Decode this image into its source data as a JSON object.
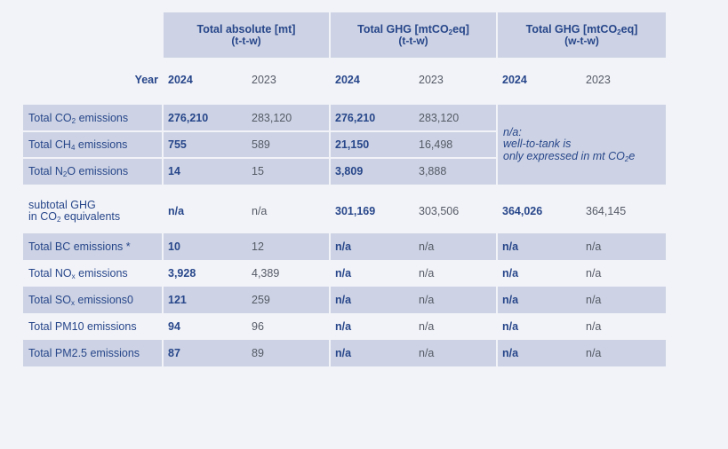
{
  "header": {
    "col1_title": "Total absolute [mt]",
    "col1_sub": "(t-t-w)",
    "col2_title_a": "Total GHG [mtCO",
    "col2_title_sub": "2",
    "col2_title_b": "eq]",
    "col2_sub": "(t-t-w)",
    "col3_title_a": "Total GHG [mtCO",
    "col3_title_sub": "2",
    "col3_title_b": "eq]",
    "col3_sub": "(w-t-w)"
  },
  "year_row": {
    "label": "Year",
    "c1_cur": "2024",
    "c1_prev": "2023",
    "c2_cur": "2024",
    "c2_prev": "2023",
    "c3_cur": "2024",
    "c3_prev": "2023"
  },
  "rows": [
    {
      "label_a": "Total CO",
      "label_sub": "2",
      "label_b": " emissions",
      "c1": "276,210",
      "c1p": "283,120",
      "c2": "276,210",
      "c2p": "283,120",
      "c3": "",
      "c3p": ""
    },
    {
      "label_a": "Total CH",
      "label_sub": "4",
      "label_b": " emissions",
      "c1": "755",
      "c1p": "589",
      "c2": "21,150",
      "c2p": "16,498",
      "c3": "",
      "c3p": ""
    },
    {
      "label_a": "Total N",
      "label_sub": "2",
      "label_b": "O emissions",
      "c1": "14",
      "c1p": "15",
      "c2": "3,809",
      "c2p": "3,888",
      "c3": "",
      "c3p": ""
    },
    {
      "label_a": "subtotal GHG",
      "label_line2_a": "in CO",
      "label_sub": "2",
      "label_b": " equivalents",
      "c1": "n/a",
      "c1p": "n/a",
      "c2": "301,169",
      "c2p": "303,506",
      "c3": "364,026",
      "c3p": "364,145"
    },
    {
      "label_a": "Total BC emissions *",
      "label_sub": "",
      "label_b": "",
      "c1": "10",
      "c1p": "12",
      "c2": "n/a",
      "c2p": "n/a",
      "c3": "n/a",
      "c3p": "n/a"
    },
    {
      "label_a": "Total NO",
      "label_sub": "x",
      "label_b": " emissions",
      "c1": "3,928",
      "c1p": "4,389",
      "c2": "n/a",
      "c2p": "n/a",
      "c3": "n/a",
      "c3p": "n/a"
    },
    {
      "label_a": "Total SO",
      "label_sub": "x",
      "label_b": " emissions0",
      "c1": "121",
      "c1p": "259",
      "c2": "n/a",
      "c2p": "n/a",
      "c3": "n/a",
      "c3p": "n/a"
    },
    {
      "label_a": "Total PM10 emissions",
      "label_sub": "",
      "label_b": "",
      "c1": "94",
      "c1p": "96",
      "c2": "n/a",
      "c2p": "n/a",
      "c3": "n/a",
      "c3p": "n/a"
    },
    {
      "label_a": "Total PM2.5 emissions",
      "label_sub": "",
      "label_b": "",
      "c1": "87",
      "c1p": "89",
      "c2": "n/a",
      "c2p": "n/a",
      "c3": "n/a",
      "c3p": "n/a"
    }
  ],
  "note": {
    "line1": "n/a:",
    "line2": "well-to-tank is",
    "line3_a": "only expressed in mt CO",
    "line3_sub": "2",
    "line3_b": "e"
  }
}
